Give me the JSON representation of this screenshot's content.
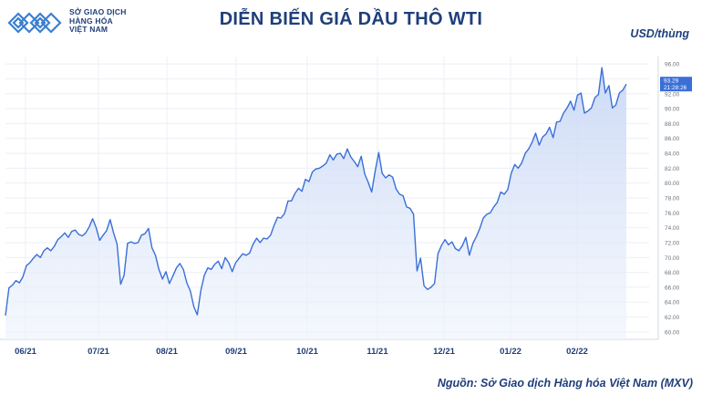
{
  "header": {
    "logo_line1": "SỞ GIAO DỊCH",
    "logo_line2": "HÀNG HÓA",
    "logo_line3": "VIỆT NAM",
    "title": "DIỄN BIẾN GIÁ DẦU THÔ WTI",
    "unit": "USD/thùng"
  },
  "footer": {
    "source": "Nguồn: Sở Giao dịch Hàng hóa Việt Nam (MXV)"
  },
  "colors": {
    "brand": "#1f3f7a",
    "line": "#3a6fd8",
    "fill_top": "#c9d8f6",
    "grid": "#eceff4"
  },
  "chart_data": {
    "type": "area",
    "title": "DIỄN BIẾN GIÁ DẦU THÔ WTI",
    "ylabel": "USD/thùng",
    "ylim": [
      59,
      97
    ],
    "yticks": [
      60,
      62,
      64,
      66,
      68,
      70,
      72,
      74,
      76,
      78,
      80,
      82,
      84,
      86,
      88,
      90,
      92,
      94,
      96
    ],
    "x_tick_labels": [
      "06/21",
      "07/21",
      "08/21",
      "09/21",
      "10/21",
      "11/21",
      "12/21",
      "01/22",
      "02/22"
    ],
    "last_price_label": "93.29",
    "last_time_label": "21:28:26",
    "grid": true,
    "values": [
      62.2,
      65.9,
      66.3,
      66.9,
      66.6,
      67.4,
      68.9,
      69.3,
      69.9,
      70.4,
      70.0,
      70.9,
      71.3,
      70.9,
      71.5,
      72.4,
      72.8,
      73.3,
      72.7,
      73.5,
      73.7,
      73.1,
      72.9,
      73.3,
      74.1,
      75.2,
      74.0,
      72.3,
      73.0,
      73.6,
      75.1,
      73.3,
      71.8,
      66.4,
      67.6,
      71.9,
      72.1,
      71.9,
      72.0,
      73.0,
      73.2,
      73.9,
      71.3,
      70.3,
      68.4,
      67.1,
      68.1,
      66.5,
      67.5,
      68.6,
      69.2,
      68.4,
      66.6,
      65.5,
      63.4,
      62.3,
      65.5,
      67.6,
      68.6,
      68.4,
      69.1,
      69.5,
      68.5,
      70.0,
      69.3,
      68.1,
      69.3,
      69.9,
      70.5,
      70.3,
      70.6,
      71.8,
      72.6,
      72.0,
      72.6,
      72.5,
      73.0,
      74.3,
      75.4,
      75.3,
      75.9,
      77.6,
      77.6,
      78.6,
      79.3,
      78.9,
      80.5,
      80.2,
      81.5,
      81.9,
      82.0,
      82.3,
      82.7,
      83.8,
      83.1,
      83.9,
      84.0,
      83.3,
      84.6,
      83.5,
      82.9,
      82.2,
      83.6,
      81.2,
      80.1,
      78.8,
      81.6,
      84.1,
      81.3,
      80.7,
      81.1,
      80.8,
      79.2,
      78.5,
      78.3,
      76.8,
      76.6,
      75.8,
      68.2,
      69.9,
      66.2,
      65.7,
      66.0,
      66.5,
      70.5,
      71.6,
      72.4,
      71.7,
      72.1,
      71.2,
      70.9,
      71.6,
      72.7,
      70.3,
      71.9,
      72.8,
      73.9,
      75.3,
      75.8,
      76.0,
      76.8,
      77.4,
      78.8,
      78.5,
      79.1,
      81.3,
      82.5,
      82.0,
      82.7,
      84.0,
      84.6,
      85.5,
      86.7,
      85.1,
      86.2,
      86.6,
      87.5,
      86.1,
      88.2,
      88.3,
      89.4,
      90.1,
      91.0,
      89.8,
      91.8,
      92.1,
      89.4,
      89.7,
      90.1,
      91.5,
      91.9,
      95.5,
      92.1,
      93.1,
      90.1,
      90.5,
      92.1,
      92.5,
      93.3
    ]
  }
}
